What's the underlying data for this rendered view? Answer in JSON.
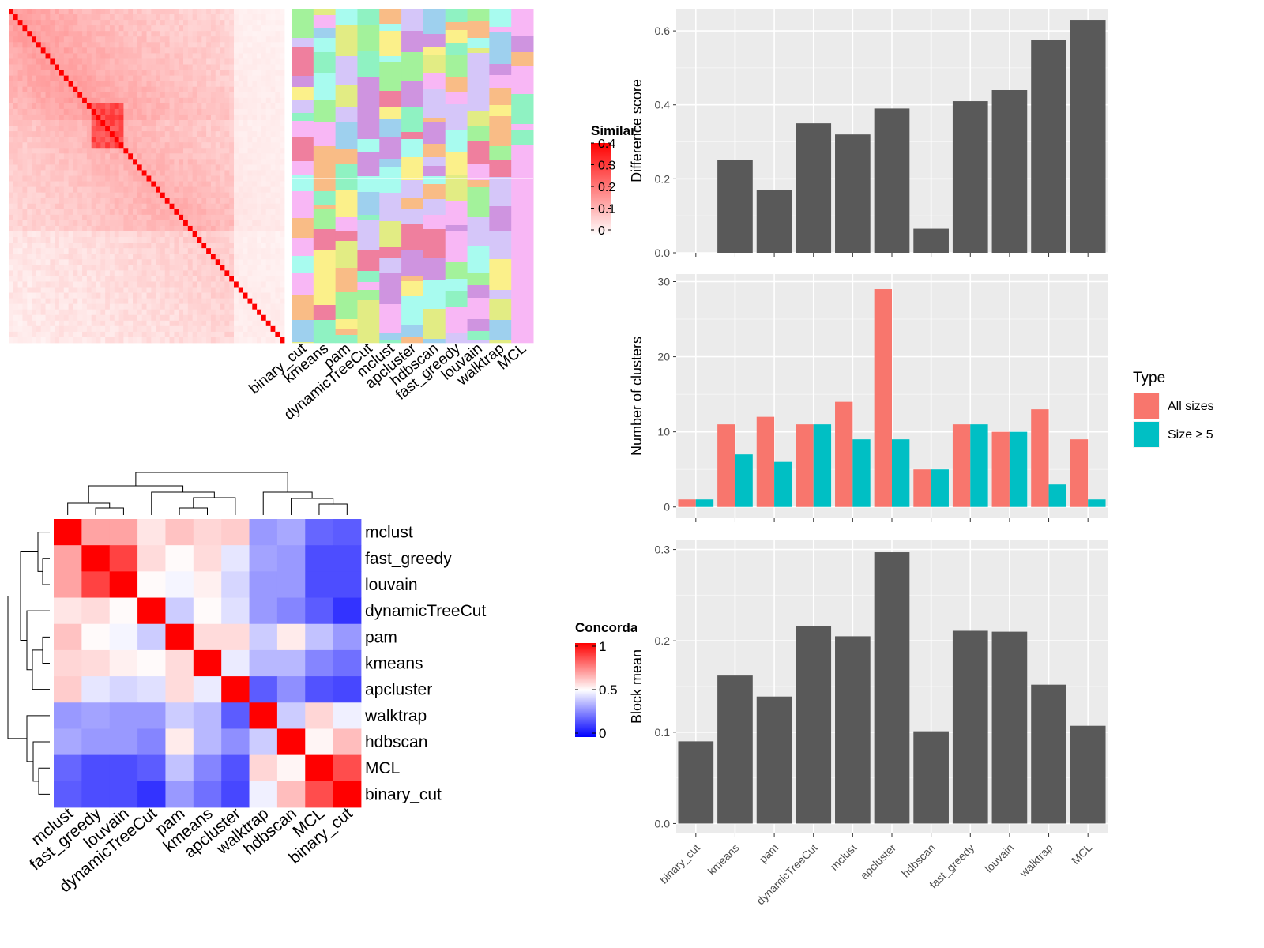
{
  "chart_data": [
    {
      "type": "heatmap",
      "legend_title": "Similarity",
      "legend_ticks": [
        "0",
        "0.1",
        "0.2",
        "0.3",
        "0.4"
      ],
      "colors": {
        "low": "#ffffff",
        "high": "#ff0000"
      },
      "annotation_columns": [
        "binary_cut",
        "kmeans",
        "pam",
        "dynamicTreeCut",
        "mclust",
        "apcluster",
        "hdbscan",
        "fast_greedy",
        "louvain",
        "walktrap",
        "MCL"
      ]
    },
    {
      "type": "heatmap",
      "legend_title": "Concordance",
      "legend_ticks": [
        "1",
        "0.5",
        "0"
      ],
      "colors": {
        "low": "#0000ff",
        "mid": "#ffffff",
        "high": "#ff0000"
      },
      "rows": [
        "mclust",
        "fast_greedy",
        "louvain",
        "dynamicTreeCut",
        "pam",
        "kmeans",
        "apcluster",
        "walktrap",
        "hdbscan",
        "MCL",
        "binary_cut"
      ],
      "columns": [
        "mclust",
        "fast_greedy",
        "louvain",
        "dynamicTreeCut",
        "pam",
        "kmeans",
        "apcluster",
        "walktrap",
        "hdbscan",
        "MCL",
        "binary_cut"
      ],
      "values": [
        [
          1.0,
          0.68,
          0.68,
          0.55,
          0.62,
          0.58,
          0.6,
          0.3,
          0.33,
          0.2,
          0.18
        ],
        [
          0.68,
          1.0,
          0.87,
          0.57,
          0.51,
          0.57,
          0.45,
          0.32,
          0.3,
          0.15,
          0.15
        ],
        [
          0.68,
          0.87,
          1.0,
          0.51,
          0.48,
          0.53,
          0.42,
          0.3,
          0.3,
          0.15,
          0.15
        ],
        [
          0.55,
          0.57,
          0.51,
          1.0,
          0.4,
          0.51,
          0.44,
          0.3,
          0.26,
          0.18,
          0.1
        ],
        [
          0.62,
          0.51,
          0.48,
          0.4,
          1.0,
          0.57,
          0.57,
          0.4,
          0.54,
          0.38,
          0.3
        ],
        [
          0.58,
          0.57,
          0.53,
          0.51,
          0.57,
          1.0,
          0.46,
          0.36,
          0.36,
          0.26,
          0.22
        ],
        [
          0.6,
          0.45,
          0.42,
          0.44,
          0.57,
          0.46,
          1.0,
          0.18,
          0.28,
          0.16,
          0.14
        ],
        [
          0.3,
          0.32,
          0.3,
          0.3,
          0.4,
          0.36,
          0.18,
          1.0,
          0.4,
          0.58,
          0.47
        ],
        [
          0.33,
          0.3,
          0.3,
          0.26,
          0.54,
          0.36,
          0.28,
          0.4,
          1.0,
          0.52,
          0.63
        ],
        [
          0.2,
          0.15,
          0.15,
          0.18,
          0.38,
          0.26,
          0.16,
          0.58,
          0.52,
          1.0,
          0.85
        ],
        [
          0.18,
          0.15,
          0.15,
          0.1,
          0.3,
          0.22,
          0.14,
          0.47,
          0.63,
          0.85,
          1.0
        ]
      ]
    },
    {
      "type": "bar",
      "ylabel": "Difference score",
      "categories": [
        "binary_cut",
        "kmeans",
        "pam",
        "dynamicTreeCut",
        "mclust",
        "apcluster",
        "hdbscan",
        "fast_greedy",
        "louvain",
        "walktrap",
        "MCL"
      ],
      "values": [
        0.0,
        0.25,
        0.17,
        0.35,
        0.32,
        0.39,
        0.065,
        0.41,
        0.44,
        0.575,
        0.63
      ],
      "ylim": [
        0,
        0.66
      ],
      "yticks": [
        0,
        0.2,
        0.4,
        0.6
      ],
      "ytick_labels": [
        "0.0",
        "0.2",
        "0.4",
        "0.6"
      ],
      "color": "#595959"
    },
    {
      "type": "bar",
      "ylabel": "Number of clusters",
      "categories": [
        "binary_cut",
        "kmeans",
        "pam",
        "dynamicTreeCut",
        "mclust",
        "apcluster",
        "hdbscan",
        "fast_greedy",
        "louvain",
        "walktrap",
        "MCL"
      ],
      "series": [
        {
          "name": "All sizes",
          "color": "#F8766D",
          "values": [
            1,
            11,
            12,
            11,
            14,
            29,
            5,
            11,
            10,
            13,
            9
          ]
        },
        {
          "name": "Size ≥ 5",
          "color": "#00BFC4",
          "values": [
            1,
            7,
            6,
            11,
            9,
            9,
            5,
            11,
            10,
            3,
            1
          ]
        }
      ],
      "ylim": [
        -1.5,
        31
      ],
      "yticks": [
        0,
        10,
        20,
        30
      ],
      "ytick_labels": [
        "0",
        "10",
        "20",
        "30"
      ],
      "legend_title": "Type",
      "legend_position": "right"
    },
    {
      "type": "bar",
      "ylabel": "Block mean",
      "categories": [
        "binary_cut",
        "kmeans",
        "pam",
        "dynamicTreeCut",
        "mclust",
        "apcluster",
        "hdbscan",
        "fast_greedy",
        "louvain",
        "walktrap",
        "MCL"
      ],
      "values": [
        0.09,
        0.162,
        0.139,
        0.216,
        0.205,
        0.297,
        0.101,
        0.211,
        0.21,
        0.152,
        0.107
      ],
      "ylim": [
        -0.01,
        0.31
      ],
      "yticks": [
        0,
        0.1,
        0.2,
        0.3
      ],
      "ytick_labels": [
        "0.0",
        "0.1",
        "0.2",
        "0.3"
      ],
      "color": "#595959"
    }
  ]
}
